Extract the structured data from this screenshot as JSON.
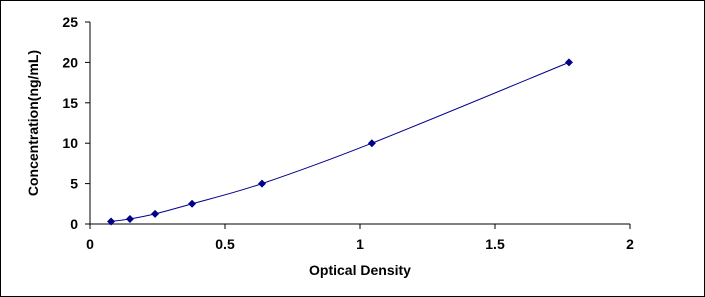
{
  "chart_data": {
    "type": "scatter",
    "xlabel": "Optical Density",
    "ylabel": "Concentration(ng/mL)",
    "series": [
      {
        "color": "#00008b",
        "x": [
          0.078,
          0.148,
          0.241,
          0.378,
          0.637,
          1.044,
          1.774
        ],
        "values": [
          0.312,
          0.625,
          1.25,
          2.5,
          5,
          10,
          20
        ]
      }
    ],
    "xlim": [
      0,
      2
    ],
    "xticks": [
      0,
      0.5,
      1,
      1.5,
      2
    ],
    "ylim": [
      0,
      25
    ],
    "yticks": [
      0,
      5,
      10,
      15,
      20,
      25
    ],
    "grid": false
  }
}
